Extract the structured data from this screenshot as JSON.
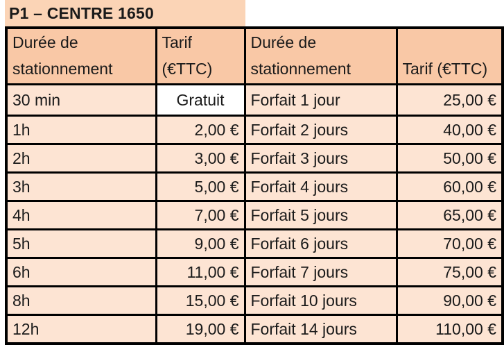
{
  "title": "P1 – CENTRE 1650",
  "headers": {
    "col1": [
      "Durée de",
      "stationnement"
    ],
    "col2": [
      "Tarif",
      "(€TTC)"
    ],
    "col3": [
      "Durée de",
      "stationnement"
    ],
    "col4": [
      "Tarif (€TTC)"
    ]
  },
  "rows": [
    {
      "duree": "30 min",
      "tarif": "Gratuit",
      "forfait": "Forfait 1 jour",
      "tarif_forfait": "25,00 €"
    },
    {
      "duree": "1h",
      "tarif": "2,00 €",
      "forfait": "Forfait 2 jours",
      "tarif_forfait": "40,00 €"
    },
    {
      "duree": "2h",
      "tarif": "3,00 €",
      "forfait": "Forfait 3 jours",
      "tarif_forfait": "50,00 €"
    },
    {
      "duree": "3h",
      "tarif": "5,00 €",
      "forfait": "Forfait 4 jours",
      "tarif_forfait": "60,00 €"
    },
    {
      "duree": "4h",
      "tarif": "7,00 €",
      "forfait": "Forfait 5 jours",
      "tarif_forfait": "65,00 €"
    },
    {
      "duree": "5h",
      "tarif": "9,00 €",
      "forfait": "Forfait 6 jours",
      "tarif_forfait": "70,00 €"
    },
    {
      "duree": "6h",
      "tarif": "11,00 €",
      "forfait": "Forfait 7 jours",
      "tarif_forfait": "75,00 €"
    },
    {
      "duree": "8h",
      "tarif": "15,00 €",
      "forfait": "Forfait 10 jours",
      "tarif_forfait": "90,00 €"
    },
    {
      "duree": "12h",
      "tarif": "19,00 €",
      "forfait": "Forfait 14 jours",
      "tarif_forfait": "110,00 €"
    }
  ],
  "colors": {
    "title_bg": "#fbd4b6",
    "header_bg": "#f9c8a6",
    "row_bg": "#fde4d3",
    "border": "#000000"
  }
}
